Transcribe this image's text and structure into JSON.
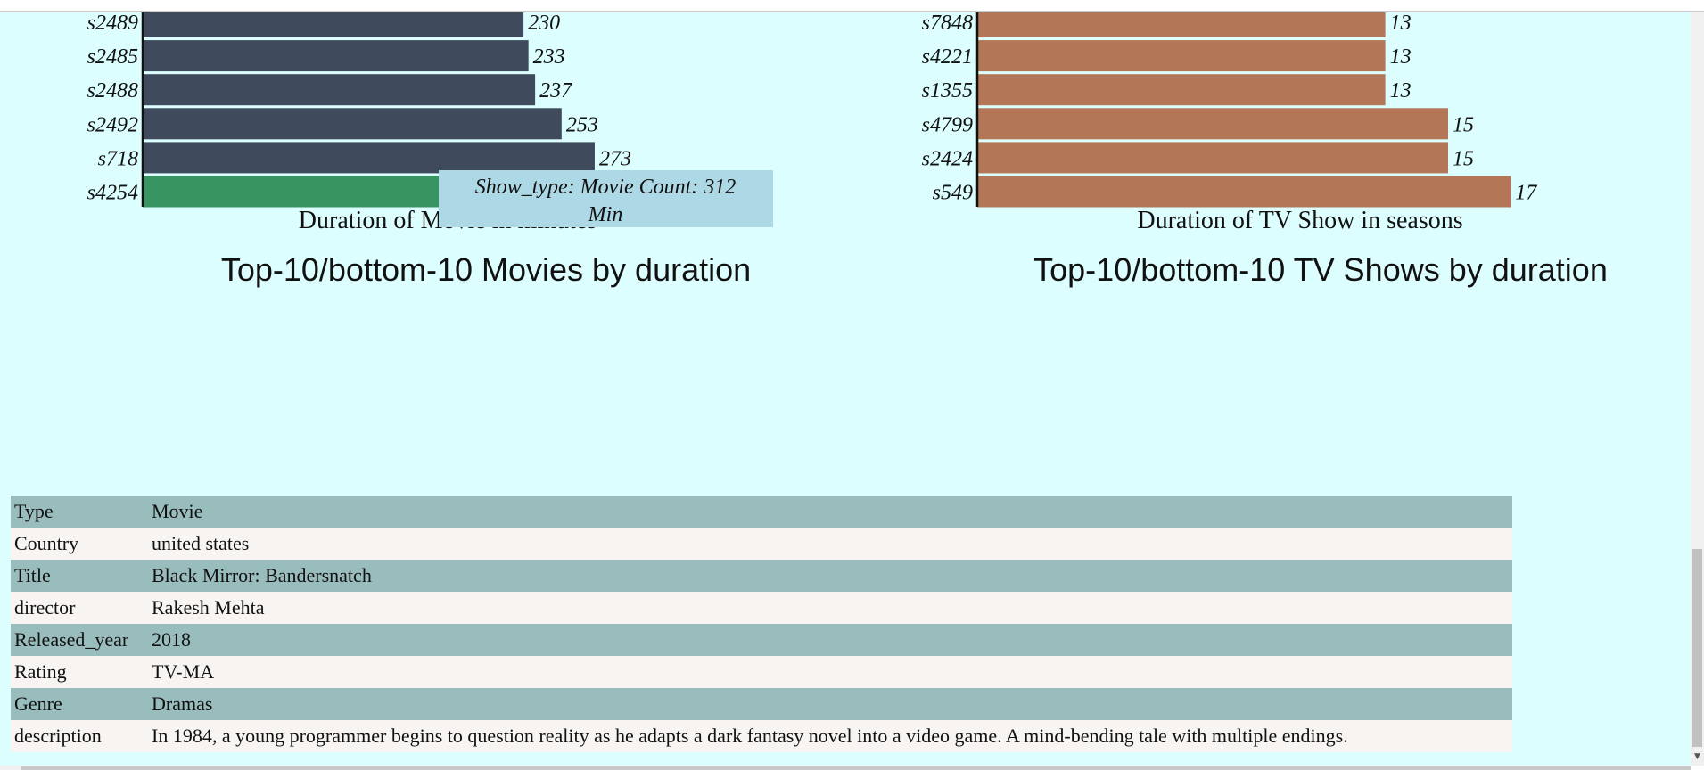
{
  "charts": {
    "movies": {
      "title": "Top-10/bottom-10 Movies by duration",
      "xlabel": "Duration of Movie in minutes",
      "bar_color": "#3f4b5d",
      "highlight_color": "#389460",
      "highlight_index": 5
    },
    "tv": {
      "title": "Top-10/bottom-10 TV Shows by duration",
      "xlabel": "Duration of TV Show in seasons",
      "bar_color": "#b37656"
    }
  },
  "chart_data": [
    {
      "type": "bar",
      "orientation": "horizontal",
      "title": "Top-10/bottom-10 Movies by duration",
      "xlabel": "Duration of Movie in minutes",
      "ylabel": "",
      "categories": [
        "s2489",
        "s2485",
        "s2488",
        "s2492",
        "s718",
        "s4254"
      ],
      "values": [
        230,
        233,
        237,
        253,
        273,
        312
      ],
      "xlim": [
        0,
        312
      ]
    },
    {
      "type": "bar",
      "orientation": "horizontal",
      "title": "Top-10/bottom-10 TV Shows by duration",
      "xlabel": "Duration of TV Show in seasons",
      "ylabel": "",
      "categories": [
        "s7848",
        "s4221",
        "s1355",
        "s4799",
        "s2424",
        "s549"
      ],
      "values": [
        13,
        13,
        13,
        15,
        15,
        17
      ],
      "xlim": [
        0,
        17
      ]
    }
  ],
  "tooltip": {
    "line1": "Show_type: Movie Count: 312",
    "line2": "Min",
    "background": "#add8e6"
  },
  "details": {
    "rows": [
      {
        "key": "Type",
        "value": "Movie"
      },
      {
        "key": "Country",
        "value": "united states"
      },
      {
        "key": "Title",
        "value": "Black Mirror: Bandersnatch"
      },
      {
        "key": "director",
        "value": "Rakesh Mehta"
      },
      {
        "key": "Released_year",
        "value": "2018"
      },
      {
        "key": "Rating",
        "value": "TV-MA"
      },
      {
        "key": "Genre",
        "value": "Dramas"
      },
      {
        "key": "description",
        "value": "In 1984, a young programmer begins to question reality as he adapts a dark fantasy novel into a video game. A mind-bending tale with multiple endings."
      }
    ]
  },
  "colors": {
    "page_background": "#dcfefe",
    "row_dark": "#99bcbc",
    "row_light": "#f8f4f1"
  }
}
